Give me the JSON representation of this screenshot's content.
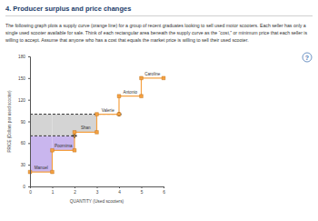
{
  "heading": "4. Producer surplus and price changes",
  "paragraph": "The following graph plots a supply curve (orange line) for a group of recent graduates looking to sell used motor scooters. Each seller has only a single used scooter available for sale. Think of each rectangular area beneath the supply curve as the “cost,” or minimum price that each seller is willing to accept. Assume that anyone who has a cost that equals the market price is willing to sell their used scooter.",
  "help_icon": "?",
  "chart_data": {
    "type": "step",
    "x": [
      0,
      1,
      2,
      3,
      4,
      5
    ],
    "values": [
      20,
      50,
      75,
      100,
      125,
      150
    ],
    "annotations": [
      "Manuel",
      "Poornima",
      "Shan",
      "Valerie",
      "Antonio",
      "Caroline"
    ],
    "color": "#f5a142",
    "marker": "square",
    "price_lines": [
      {
        "value": 70,
        "color": "#c9b6ee"
      },
      {
        "value": 100,
        "color": "#d4d4d4"
      }
    ],
    "xlabel": "QUANTITY (Used scooters)",
    "ylabel": "PRICE (Dollars per used scooter)",
    "xlim": [
      0,
      6
    ],
    "ylim": [
      0,
      180
    ],
    "xticks": [
      0,
      1,
      2,
      3,
      4,
      5,
      6
    ],
    "yticks": [
      0,
      30,
      60,
      90,
      120,
      150,
      180
    ],
    "grid": false
  }
}
